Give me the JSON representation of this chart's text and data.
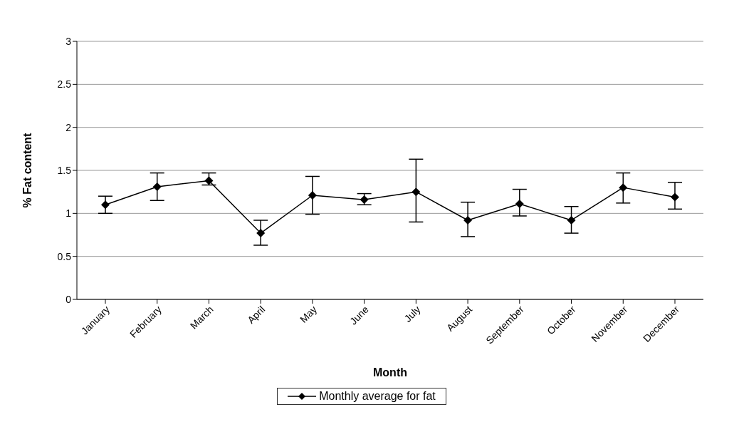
{
  "chart_data": {
    "type": "line",
    "xlabel": "Month",
    "ylabel": "% Fat content",
    "categories": [
      "January",
      "February",
      "March",
      "April",
      "May",
      "June",
      "July",
      "August",
      "September",
      "October",
      "November",
      "December"
    ],
    "series": [
      {
        "name": "Monthly average for fat",
        "color": "#000000",
        "values": [
          1.1,
          1.31,
          1.38,
          0.77,
          1.21,
          1.16,
          1.25,
          0.92,
          1.11,
          0.92,
          1.3,
          1.19
        ],
        "errors": [
          [
            1.0,
            1.2
          ],
          [
            1.15,
            1.47
          ],
          [
            1.33,
            1.47
          ],
          [
            0.63,
            0.92
          ],
          [
            0.99,
            1.43
          ],
          [
            1.1,
            1.23
          ],
          [
            0.9,
            1.63
          ],
          [
            0.73,
            1.13
          ],
          [
            0.97,
            1.28
          ],
          [
            0.77,
            1.08
          ],
          [
            1.12,
            1.47
          ],
          [
            1.05,
            1.36
          ]
        ]
      }
    ],
    "ylim": [
      0,
      3
    ],
    "yticks": [
      0,
      0.5,
      1,
      1.5,
      2,
      2.5,
      3
    ],
    "grid": "y",
    "legend": "bottom",
    "marker": "diamond",
    "line_style": "solid"
  }
}
